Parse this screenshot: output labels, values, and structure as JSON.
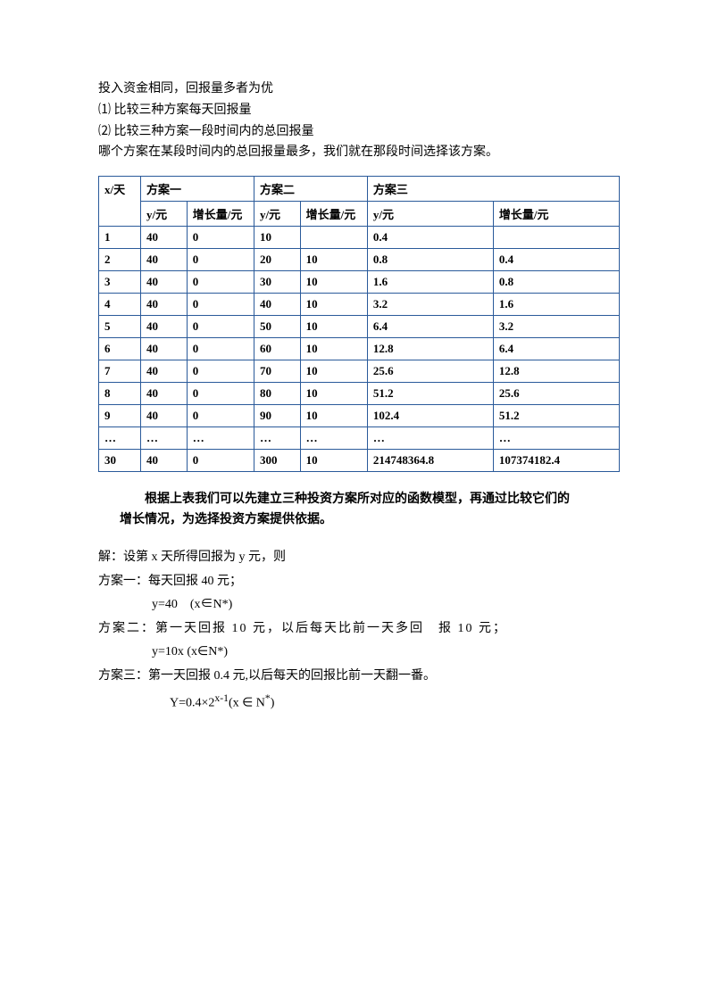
{
  "intro": {
    "line1": "投入资金相同，回报量多者为优",
    "line2": "⑴ 比较三种方案每天回报量",
    "line3": "⑵ 比较三种方案一段时间内的总回报量",
    "line4": "哪个方案在某段时间内的总回报量最多，我们就在那段时间选择该方案。"
  },
  "table": {
    "header_x": "x/天",
    "header_plan1": "方案一",
    "header_plan2": "方案二",
    "header_plan3": "方案三",
    "sub_y": "y/元",
    "sub_growth": "增长量/元",
    "rows": [
      {
        "x": "1",
        "y1": "40",
        "g1": "0",
        "y2": "10",
        "g2": "",
        "y3": "0.4",
        "g3": ""
      },
      {
        "x": "2",
        "y1": "40",
        "g1": "0",
        "y2": "20",
        "g2": "10",
        "y3": "0.8",
        "g3": "0.4"
      },
      {
        "x": "3",
        "y1": "40",
        "g1": "0",
        "y2": "30",
        "g2": "10",
        "y3": "1.6",
        "g3": "0.8"
      },
      {
        "x": "4",
        "y1": "40",
        "g1": "0",
        "y2": "40",
        "g2": "10",
        "y3": "3.2",
        "g3": "1.6"
      },
      {
        "x": "5",
        "y1": "40",
        "g1": "0",
        "y2": "50",
        "g2": "10",
        "y3": "6.4",
        "g3": "3.2"
      },
      {
        "x": "6",
        "y1": "40",
        "g1": "0",
        "y2": "60",
        "g2": "10",
        "y3": "12.8",
        "g3": "6.4"
      },
      {
        "x": "7",
        "y1": "40",
        "g1": "0",
        "y2": "70",
        "g2": "10",
        "y3": "25.6",
        "g3": "12.8"
      },
      {
        "x": "8",
        "y1": "40",
        "g1": "0",
        "y2": "80",
        "g2": "10",
        "y3": "51.2",
        "g3": "25.6"
      },
      {
        "x": "9",
        "y1": "40",
        "g1": "0",
        "y2": "90",
        "g2": "10",
        "y3": "102.4",
        "g3": "51.2"
      },
      {
        "x": "…",
        "y1": "…",
        "g1": "…",
        "y2": "…",
        "g2": "…",
        "y3": "…",
        "g3": "…"
      },
      {
        "x": "30",
        "y1": "40",
        "g1": "0",
        "y2": "300",
        "g2": "10",
        "y3": "214748364.8",
        "g3": "107374182.4"
      }
    ]
  },
  "summary": {
    "line1": "根据上表我们可以先建立三种投资方案所对应的函数模型，再通过比较它们的",
    "line2": "增长情况，为选择投资方案提供依据。"
  },
  "solution": {
    "line1": "解：设第 x 天所得回报为 y 元，则",
    "line2": "方案一：每天回报 40 元；",
    "formula1": "y=40　(x∈N*)",
    "line3": "方案二：第一天回报 10 元，以后每天比前一天多回　报 10 元；",
    "formula2": "y=10x (x∈N*)",
    "line4": "方案三：第一天回报 0.4 元,以后每天的回报比前一天翻一番。",
    "formula3_prefix": "Y=0.4×2",
    "formula3_sup": "x-1",
    "formula3_suffix": "(x ∈ N",
    "formula3_sup2": "*",
    "formula3_end": ")"
  },
  "style": {
    "border_color": "#2a5a9a",
    "text_color": "#000000",
    "background": "#ffffff",
    "font_size_body": 14,
    "font_size_table": 13
  }
}
